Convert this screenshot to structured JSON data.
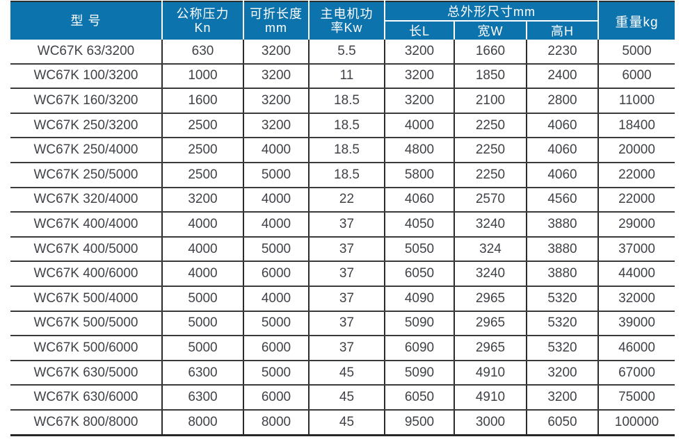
{
  "colors": {
    "header_bg": "#0d73ad",
    "header_text": "#ffffff",
    "body_text": "#3f4247",
    "grid_line": "#333333"
  },
  "table": {
    "header": {
      "model": "型 号",
      "pressure_line1": "公称压力",
      "pressure_line2": "Kn",
      "length_line1": "可折长度",
      "length_line2": "mm",
      "motor_line1": "主电机功",
      "motor_line2": "率Kw",
      "dimensions": "总外形尺寸mm",
      "sub_length": "长L",
      "sub_width": "宽W",
      "sub_height": "高H",
      "weight": "重量kg"
    },
    "rows": [
      [
        "WC67K 63/3200",
        "630",
        "3200",
        "5.5",
        "3200",
        "1660",
        "2230",
        "5000"
      ],
      [
        "WC67K 100/3200",
        "1000",
        "3200",
        "11",
        "3200",
        "1850",
        "2400",
        "6000"
      ],
      [
        "WC67K 160/3200",
        "1600",
        "3200",
        "18.5",
        "3200",
        "2100",
        "2800",
        "11000"
      ],
      [
        "WC67K 250/3200",
        "2500",
        "3200",
        "18.5",
        "4000",
        "2250",
        "4060",
        "18400"
      ],
      [
        "WC67K 250/4000",
        "2500",
        "4000",
        "18.5",
        "4800",
        "2250",
        "4060",
        "20000"
      ],
      [
        "WC67K 250/5000",
        "2500",
        "5000",
        "18.5",
        "5800",
        "2250",
        "4060",
        "22000"
      ],
      [
        "WC67K 320/4000",
        "3200",
        "4000",
        "22",
        "4060",
        "2570",
        "4560",
        "22000"
      ],
      [
        "WC67K 400/4000",
        "4000",
        "4000",
        "37",
        "4050",
        "3240",
        "3880",
        "29000"
      ],
      [
        "WC67K 400/5000",
        "4000",
        "5000",
        "37",
        "5050",
        "324",
        "3880",
        "37000"
      ],
      [
        "WC67K 400/6000",
        "4000",
        "6000",
        "37",
        "6050",
        "3240",
        "3880",
        "44000"
      ],
      [
        "WC67K 500/4000",
        "5000",
        "4000",
        "37",
        "4090",
        "2965",
        "5320",
        "32000"
      ],
      [
        "WC67K 500/5000",
        "5000",
        "5000",
        "37",
        "5090",
        "2965",
        "5320",
        "39000"
      ],
      [
        "WC67K 500/6000",
        "5000",
        "6000",
        "37",
        "6090",
        "2965",
        "5320",
        "46000"
      ],
      [
        "WC67K 630/5000",
        "6300",
        "5000",
        "45",
        "5090",
        "4910",
        "3200",
        "67000"
      ],
      [
        "WC67K 630/6000",
        "6300",
        "6000",
        "45",
        "6050",
        "4910",
        "3200",
        "75000"
      ],
      [
        "WC67K 800/8000",
        "8000",
        "8000",
        "45",
        "9500",
        "3000",
        "6050",
        "100000"
      ]
    ]
  }
}
